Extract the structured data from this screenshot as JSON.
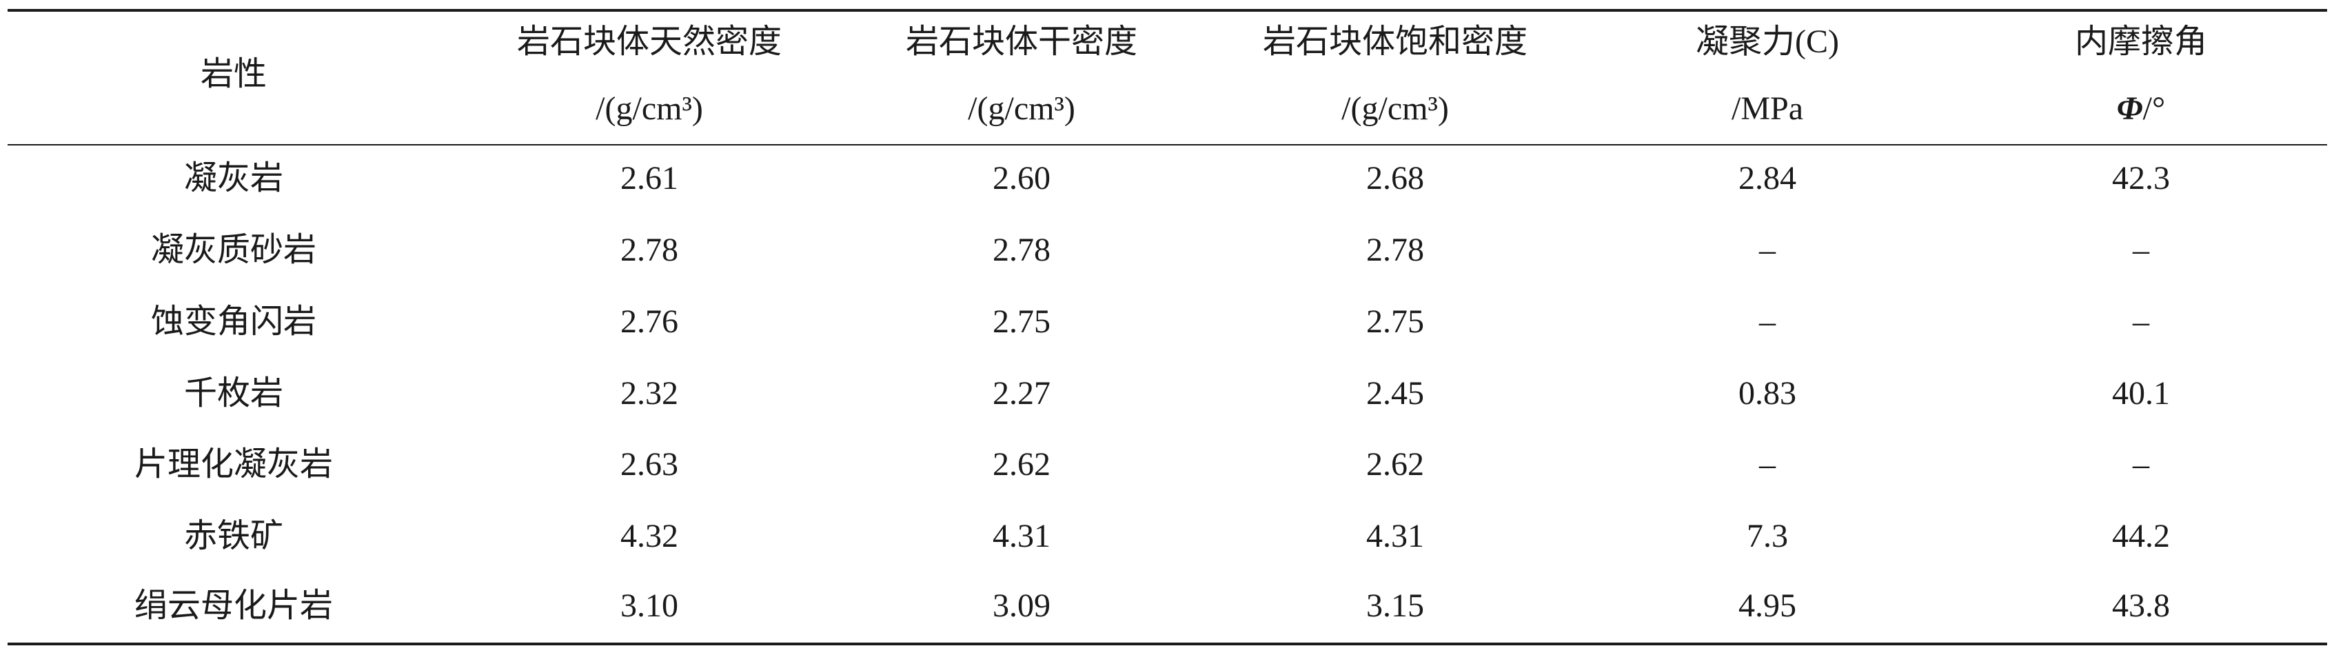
{
  "table": {
    "columns": [
      {
        "name": "岩性"
      },
      {
        "name": "岩石块体天然密度",
        "unit": "/(g/cm³)"
      },
      {
        "name": "岩石块体干密度",
        "unit": "/(g/cm³)"
      },
      {
        "name": "岩石块体饱和密度",
        "unit": "/(g/cm³)"
      },
      {
        "name": "凝聚力(C)",
        "unit": "/MPa"
      },
      {
        "name": "内摩擦角",
        "symbol": "Φ",
        "unit": "/°"
      }
    ],
    "rows": [
      [
        "凝灰岩",
        "2.61",
        "2.60",
        "2.68",
        "2.84",
        "42.3"
      ],
      [
        "凝灰质砂岩",
        "2.78",
        "2.78",
        "2.78",
        "–",
        "–"
      ],
      [
        "蚀变角闪岩",
        "2.76",
        "2.75",
        "2.75",
        "–",
        "–"
      ],
      [
        "千枚岩",
        "2.32",
        "2.27",
        "2.45",
        "0.83",
        "40.1"
      ],
      [
        "片理化凝灰岩",
        "2.63",
        "2.62",
        "2.62",
        "–",
        "–"
      ],
      [
        "赤铁矿",
        "4.32",
        "4.31",
        "4.31",
        "7.3",
        "44.2"
      ],
      [
        "绢云母化片岩",
        "3.10",
        "3.09",
        "3.15",
        "4.95",
        "43.8"
      ]
    ]
  }
}
